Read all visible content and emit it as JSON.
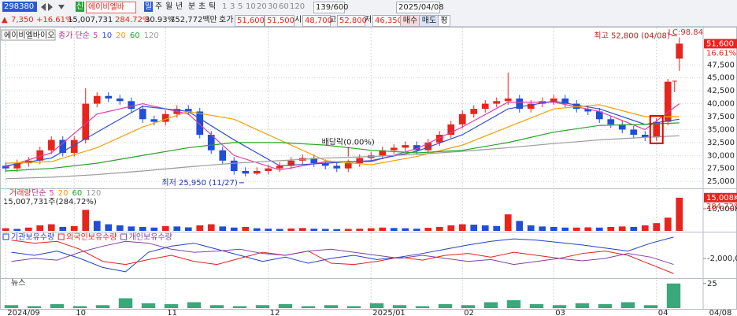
{
  "toolbar": {
    "row1": [
      "298380",
      "신",
      "에이비엘바",
      "일",
      "주",
      "월",
      "년",
      "분",
      "초",
      "틱",
      "1",
      "3",
      "5",
      "10",
      "20",
      "30",
      "60",
      "120",
      "139/600",
      "2025/04/08"
    ],
    "row2": [
      "▲",
      "7,350",
      "+16.61%",
      "15,007,731",
      "284.72%",
      "30.93%",
      "752,772백만",
      "호가",
      "51,600",
      "51,500",
      "시",
      "48,700",
      "고",
      "52,800",
      "저",
      "46,350",
      "매수",
      "매도",
      "평"
    ]
  },
  "chart_data": [
    {
      "type": "candlestick",
      "title": "에이비엘바이오",
      "ma_label": "종가 단순",
      "up_color": "#e8241c",
      "down_color": "#1f4fd8",
      "open": [
        28000,
        27500,
        28500,
        29000,
        31000,
        33000,
        30500,
        33000,
        40000,
        41500,
        41000,
        40500,
        39000,
        37000,
        36500,
        38000,
        39000,
        38500,
        34000,
        31000,
        29000,
        27000,
        26500,
        27000,
        27500,
        28000,
        29000,
        29500,
        28500,
        28000,
        27500,
        28500,
        29500,
        30000,
        31000,
        31500,
        32000,
        31000,
        32500,
        34000,
        36000,
        38000,
        39000,
        40000,
        40500,
        41000,
        39000,
        40000,
        40500,
        41000,
        40000,
        39000,
        38500,
        37000,
        36000,
        35000,
        34000,
        33500,
        36500,
        48700
      ],
      "high": [
        28700,
        29200,
        29700,
        31700,
        33700,
        33700,
        33700,
        43000,
        42200,
        42200,
        41700,
        41200,
        39700,
        37700,
        38700,
        39700,
        39700,
        39200,
        34700,
        31700,
        29700,
        27700,
        27700,
        28200,
        28700,
        29700,
        30200,
        30200,
        29200,
        28700,
        29200,
        30200,
        30700,
        31700,
        32200,
        32700,
        32700,
        33200,
        34700,
        36700,
        38700,
        39700,
        40700,
        41200,
        46000,
        41700,
        40700,
        41200,
        41700,
        41700,
        40700,
        39700,
        39200,
        37700,
        36700,
        35700,
        34700,
        37200,
        44800,
        52800
      ],
      "low": [
        26800,
        26800,
        27800,
        28300,
        30300,
        29800,
        29800,
        32300,
        39300,
        40300,
        39800,
        38300,
        36300,
        35800,
        35800,
        37300,
        37800,
        33300,
        30300,
        28300,
        26300,
        25950,
        26200,
        26300,
        26800,
        27300,
        28300,
        27800,
        27300,
        26800,
        26800,
        27800,
        28800,
        29300,
        30300,
        30800,
        30300,
        30300,
        31800,
        33300,
        35300,
        37300,
        38300,
        39300,
        39800,
        38300,
        38300,
        39300,
        39800,
        39300,
        38300,
        37800,
        36300,
        35300,
        34300,
        33300,
        32800,
        32800,
        35800,
        46350
      ],
      "close": [
        27500,
        28500,
        29000,
        31000,
        33000,
        30500,
        33000,
        40000,
        41500,
        41000,
        40500,
        39000,
        37000,
        36500,
        38000,
        39000,
        38500,
        34000,
        31000,
        29000,
        27000,
        26500,
        27000,
        27500,
        28000,
        29000,
        29500,
        28500,
        28000,
        27500,
        28500,
        29500,
        30000,
        31000,
        31500,
        32000,
        31000,
        32500,
        34000,
        36000,
        38000,
        39000,
        40000,
        40500,
        41000,
        39000,
        40000,
        40500,
        41000,
        40000,
        39000,
        38500,
        37000,
        36000,
        35000,
        34000,
        33500,
        36500,
        44250,
        51600
      ],
      "series": [
        {
          "name": "5",
          "color": "#e03ca8",
          "x": [
            0,
            4,
            8,
            12,
            16,
            20,
            24,
            28,
            32,
            36,
            40,
            44,
            48,
            52,
            56,
            59
          ],
          "values": [
            27800,
            30500,
            38000,
            40000,
            38000,
            30000,
            27200,
            28800,
            28800,
            31300,
            35500,
            40300,
            40300,
            38500,
            35000,
            40000
          ]
        },
        {
          "name": "10",
          "color": "#3050d0",
          "x": [
            0,
            4,
            8,
            12,
            16,
            20,
            24,
            28,
            32,
            36,
            40,
            44,
            48,
            52,
            56,
            59
          ],
          "values": [
            28000,
            29500,
            34500,
            39500,
            38500,
            33000,
            28000,
            28500,
            29000,
            30800,
            34000,
            39000,
            40500,
            39000,
            36000,
            37000
          ]
        },
        {
          "name": "20",
          "color": "#f0a000",
          "x": [
            0,
            4,
            8,
            12,
            16,
            20,
            24,
            28,
            32,
            36,
            40,
            44,
            48,
            52,
            56,
            59
          ],
          "values": [
            28500,
            28800,
            31500,
            35500,
            38500,
            37000,
            33000,
            29000,
            28200,
            29800,
            32000,
            35500,
            39000,
            39800,
            37500,
            37500
          ]
        },
        {
          "name": "60",
          "color": "#2aa02a",
          "x": [
            0,
            4,
            8,
            12,
            16,
            20,
            24,
            28,
            32,
            36,
            40,
            44,
            48,
            52,
            56,
            59
          ],
          "values": [
            27000,
            27500,
            28500,
            30000,
            31500,
            32500,
            32500,
            32000,
            31000,
            30500,
            31000,
            32500,
            34500,
            35800,
            36000,
            36300
          ]
        },
        {
          "name": "120",
          "color": "#9a9a9a",
          "x": [
            0,
            4,
            8,
            12,
            16,
            20,
            24,
            28,
            32,
            36,
            40,
            44,
            48,
            52,
            56,
            59
          ],
          "values": [
            25500,
            25800,
            26300,
            27000,
            27800,
            28500,
            29000,
            29500,
            29800,
            30200,
            30800,
            31500,
            32300,
            33000,
            33500,
            33800
          ]
        }
      ],
      "ylim": [
        23800,
        54400
      ],
      "yticks": [
        {
          "value": 25000,
          "label": "25,000"
        },
        {
          "value": 27500,
          "label": "27,500"
        },
        {
          "value": 30000,
          "label": "30,000"
        },
        {
          "value": 32500,
          "label": "32,500"
        },
        {
          "value": 35000,
          "label": "35,000"
        },
        {
          "value": 37500,
          "label": "37,500"
        },
        {
          "value": 40000,
          "label": "40,000"
        },
        {
          "value": 42500,
          "label": "42,500"
        },
        {
          "value": 45000,
          "label": "45,000"
        },
        {
          "value": 47500,
          "label": "47,500"
        }
      ],
      "xticks": [
        {
          "value": 0,
          "label": "2024/09"
        },
        {
          "value": 6,
          "label": "10"
        },
        {
          "value": 14,
          "label": "11"
        },
        {
          "value": 23,
          "label": "12"
        },
        {
          "value": 32,
          "label": "2025/01"
        },
        {
          "value": 40,
          "label": "02"
        },
        {
          "value": 48,
          "label": "03"
        },
        {
          "value": 57,
          "label": "04"
        }
      ],
      "last_date": "04/08",
      "lc": "LC:98.84",
      "last_close_label": "51,600",
      "change_pct": "16.61%",
      "annotations": [
        "최고 52,800 (04/08)",
        "최저 25,950 (11/27)",
        "배당락(0.00%)"
      ],
      "grid": true
    },
    {
      "type": "bar",
      "title": "거래량",
      "ma_label": "단순",
      "ma_periods": [
        "5",
        "20",
        "60",
        "120"
      ],
      "ma_colors": [
        "#e03ca8",
        "#f0a000",
        "#2aa02a",
        "#9a9a9a"
      ],
      "info": "15,007,731주(284.72%)",
      "up_color": "#e8241c",
      "down_color": "#1f4fd8",
      "values": [
        1200000,
        900000,
        1500000,
        2500000,
        3000000,
        1800000,
        2200000,
        9500000,
        4500000,
        3000000,
        2500000,
        2000000,
        1800000,
        1500000,
        2200000,
        2000000,
        1600000,
        2500000,
        3000000,
        2000000,
        1500000,
        1800000,
        1200000,
        1000000,
        900000,
        1100000,
        1300000,
        1000000,
        900000,
        800000,
        900000,
        1000000,
        1200000,
        1500000,
        1300000,
        1200000,
        1000000,
        1400000,
        1800000,
        2500000,
        3000000,
        2800000,
        2500000,
        2200000,
        7500000,
        4500000,
        2500000,
        2000000,
        1800000,
        1500000,
        1500000,
        1600000,
        1500000,
        1800000,
        2000000,
        1800000,
        2500000,
        3500000,
        6000000,
        15007731
      ],
      "ylim": [
        0,
        18500000
      ],
      "yticks": [
        {
          "value": 10000000,
          "label": "10,000K"
        }
      ],
      "last_value_label": "15,008K",
      "last_ratio": "284.72%"
    },
    {
      "type": "line",
      "series": [
        {
          "name": "기관보유수량",
          "color": "#2040c0",
          "values": [
            -1000000,
            -1500000,
            -800000,
            -2000000,
            -3500000,
            -4200000,
            -1000000,
            0,
            500000,
            -500000,
            -1500000,
            -2500000,
            -1800000,
            -2800000,
            -2000000,
            -1500000,
            -2200000,
            -1800000,
            -1200000,
            -500000,
            200000,
            800000,
            1200000,
            1000000,
            600000,
            200000,
            -300000,
            -800000,
            500000,
            1500000
          ]
        },
        {
          "name": "외국인보유수량",
          "color": "#e02020",
          "values": [
            1000000,
            500000,
            800000,
            -500000,
            -2500000,
            -3000000,
            -2200000,
            -1500000,
            -2500000,
            -3000000,
            -2000000,
            -1000000,
            -1500000,
            -800000,
            -2800000,
            -3000000,
            -2500000,
            -1800000,
            -2300000,
            -1500000,
            -1200000,
            -1800000,
            -1000000,
            -1500000,
            -2000000,
            -1200000,
            -800000,
            -1500000,
            -3000000,
            -4500000
          ]
        },
        {
          "name": "개인보유수량",
          "color": "#8040a0",
          "values": [
            -2500000,
            -2000000,
            -2300000,
            -1000000,
            0,
            800000,
            500000,
            -500000,
            -1000000,
            -800000,
            -500000,
            -1200000,
            -1500000,
            -800000,
            -500000,
            -1000000,
            -1500000,
            -2000000,
            -1500000,
            -2000000,
            -2500000,
            -2200000,
            -3000000,
            -2500000,
            -2000000,
            -2400000,
            -2000000,
            -1200000,
            -1800000,
            -3000000
          ]
        }
      ],
      "ylim": [
        -5000000,
        2000000
      ],
      "yticks": [
        {
          "value": -2000000,
          "label": "-2,000,000"
        }
      ]
    },
    {
      "type": "bar",
      "title": "뉴스",
      "color": "#3aa87a",
      "values": [
        3,
        2,
        4,
        2,
        3,
        10,
        5,
        4,
        6,
        3,
        2,
        3,
        4,
        2,
        3,
        2,
        5,
        3,
        2,
        4,
        3,
        6,
        8,
        4,
        3,
        5,
        4,
        6,
        3,
        25
      ],
      "ylim": [
        0,
        28
      ],
      "yticks": [
        25
      ]
    }
  ]
}
